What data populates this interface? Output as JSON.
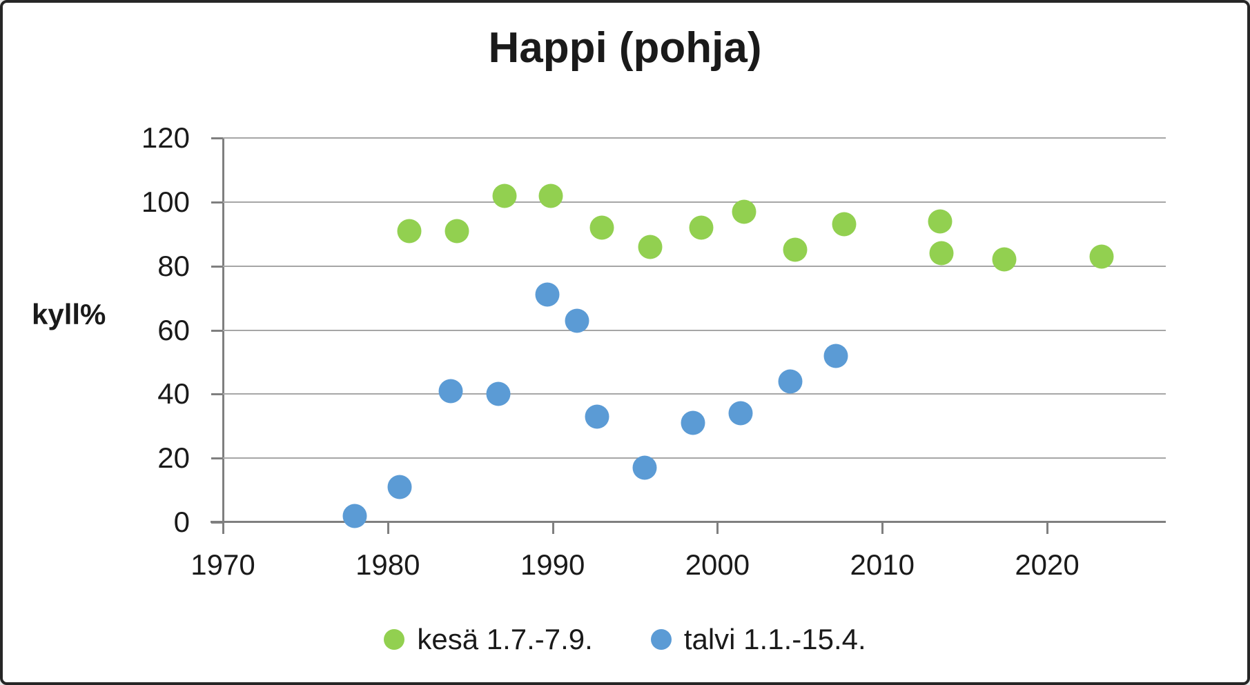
{
  "title": "Happi (pohja)",
  "colors": {
    "summer": "#92d050",
    "winter": "#5b9bd5",
    "gridline": "#a6a6a6",
    "axis": "#7f7f7f",
    "text": "#1a1a1a",
    "border": "#262626"
  },
  "chart_data": {
    "type": "scatter",
    "title": "Happi (pohja)",
    "xlabel": "",
    "ylabel": "kyll%",
    "xlim": [
      1970,
      2027.2
    ],
    "ylim": [
      0,
      120
    ],
    "x_ticks": [
      1970,
      1980,
      1990,
      2000,
      2010,
      2020
    ],
    "y_ticks": [
      0,
      20,
      40,
      60,
      80,
      100,
      120
    ],
    "grid": "horizontal-only",
    "legend_position": "bottom-center",
    "series": [
      {
        "name": "kesä 1.7.-7.9.",
        "color": "#92d050",
        "points": [
          {
            "x": 1981.3,
            "y": 91
          },
          {
            "x": 1984.2,
            "y": 91
          },
          {
            "x": 1987.1,
            "y": 102
          },
          {
            "x": 1989.9,
            "y": 102
          },
          {
            "x": 1993.0,
            "y": 92
          },
          {
            "x": 1995.9,
            "y": 86
          },
          {
            "x": 1999.0,
            "y": 92
          },
          {
            "x": 2001.6,
            "y": 97
          },
          {
            "x": 2004.7,
            "y": 85
          },
          {
            "x": 2007.7,
            "y": 93
          },
          {
            "x": 2013.5,
            "y": 94
          },
          {
            "x": 2013.6,
            "y": 84
          },
          {
            "x": 2017.4,
            "y": 82
          },
          {
            "x": 2023.3,
            "y": 83
          }
        ]
      },
      {
        "name": "talvi 1.1.-15.4.",
        "color": "#5b9bd5",
        "points": [
          {
            "x": 1978.0,
            "y": 2
          },
          {
            "x": 1980.7,
            "y": 11
          },
          {
            "x": 1983.8,
            "y": 41
          },
          {
            "x": 1986.7,
            "y": 40
          },
          {
            "x": 1989.7,
            "y": 71
          },
          {
            "x": 1991.5,
            "y": 63
          },
          {
            "x": 1992.7,
            "y": 33
          },
          {
            "x": 1995.6,
            "y": 17
          },
          {
            "x": 1998.5,
            "y": 31
          },
          {
            "x": 2001.4,
            "y": 34
          },
          {
            "x": 2004.4,
            "y": 44
          },
          {
            "x": 2007.2,
            "y": 52
          }
        ]
      }
    ]
  }
}
